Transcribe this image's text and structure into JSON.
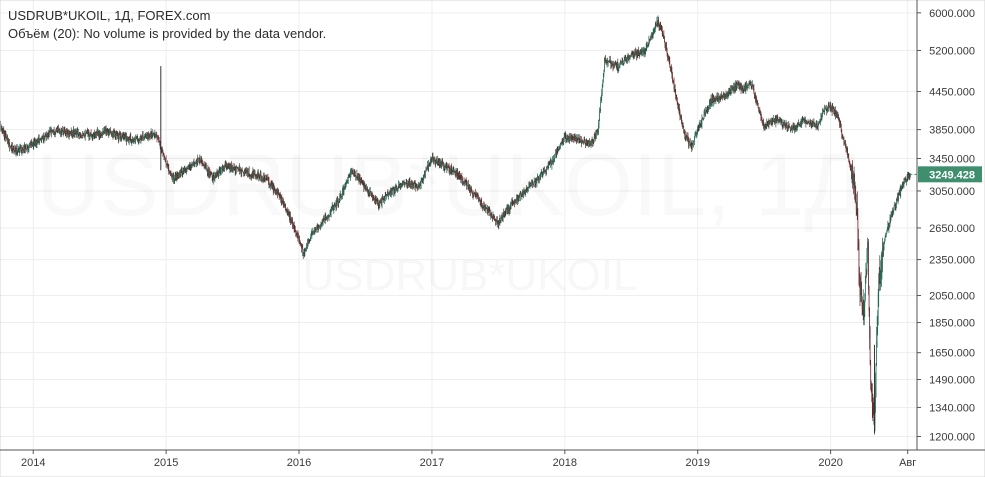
{
  "chart_data": {
    "type": "candlestick",
    "title": "USDRUB*UKOIL, 1Д, FOREX.com",
    "subtitle": "Объём (20): No volume is provided by the data vendor.",
    "watermark_main": "USDRUB*UKOIL, 1Д",
    "watermark_sub": "USDRUB*UKOIL",
    "last_value_label": "3249.428",
    "xlabel": "",
    "ylabel": "",
    "scale": "log",
    "grid": true,
    "ylim": [
      1140,
      6300
    ],
    "y_ticks": [
      6000,
      5200,
      4450,
      3850,
      3450,
      3050,
      2650,
      2350,
      2050,
      1850,
      1650,
      1490,
      1340,
      1200
    ],
    "y_tick_labels": [
      "6000.000",
      "5200.000",
      "4450.000",
      "3850.000",
      "3450.000",
      "3050.000",
      "2650.000",
      "2350.000",
      "2050.000",
      "1850.000",
      "1650.000",
      "1490.000",
      "1340.000",
      "1200.000"
    ],
    "xlim": [
      2013.75,
      2020.65
    ],
    "x_ticks": [
      2014,
      2015,
      2016,
      2017,
      2018,
      2019,
      2020,
      2020.58
    ],
    "x_tick_labels": [
      "2014",
      "2015",
      "2016",
      "2017",
      "2018",
      "2019",
      "2020",
      "Авг"
    ],
    "series": [
      {
        "x": [
          2013.75,
          2013.85,
          2013.95,
          2014.05,
          2014.15,
          2014.25,
          2014.35,
          2014.45,
          2014.55,
          2014.65,
          2014.75,
          2014.85,
          2014.92,
          2014.96,
          2015.0,
          2015.05,
          2015.15,
          2015.25,
          2015.35,
          2015.45,
          2015.55,
          2015.65,
          2015.75,
          2015.85,
          2015.95,
          2016.0,
          2016.03,
          2016.1,
          2016.2,
          2016.3,
          2016.4,
          2016.5,
          2016.6,
          2016.7,
          2016.8,
          2016.9,
          2017.0,
          2017.1,
          2017.2,
          2017.3,
          2017.4,
          2017.5,
          2017.6,
          2017.7,
          2017.8,
          2017.9,
          2018.0,
          2018.1,
          2018.2,
          2018.25,
          2018.3,
          2018.4,
          2018.5,
          2018.6,
          2018.65,
          2018.7,
          2018.75,
          2018.8,
          2018.85,
          2018.9,
          2018.95,
          2019.0,
          2019.1,
          2019.2,
          2019.3,
          2019.35,
          2019.4,
          2019.5,
          2019.6,
          2019.7,
          2019.8,
          2019.9,
          2019.95,
          2020.0,
          2020.05,
          2020.1,
          2020.15,
          2020.18,
          2020.2,
          2020.22,
          2020.25,
          2020.28,
          2020.3,
          2020.33,
          2020.36,
          2020.4,
          2020.45,
          2020.5,
          2020.55,
          2020.6
        ],
        "y": [
          3900,
          3550,
          3600,
          3700,
          3850,
          3800,
          3800,
          3780,
          3820,
          3750,
          3700,
          3750,
          3800,
          3600,
          3400,
          3200,
          3300,
          3450,
          3200,
          3350,
          3300,
          3250,
          3200,
          3000,
          2700,
          2550,
          2400,
          2600,
          2750,
          2950,
          3300,
          3100,
          2900,
          3050,
          3150,
          3100,
          3450,
          3350,
          3250,
          3050,
          2850,
          2700,
          2900,
          3050,
          3200,
          3400,
          3750,
          3700,
          3650,
          3850,
          5000,
          4900,
          5100,
          5200,
          5500,
          5800,
          5400,
          4800,
          4200,
          3800,
          3600,
          3850,
          4300,
          4400,
          4550,
          4500,
          4600,
          3900,
          4000,
          3850,
          4000,
          3900,
          4150,
          4200,
          4050,
          3700,
          3350,
          3100,
          2800,
          2100,
          1950,
          2500,
          1500,
          1250,
          2150,
          2500,
          2750,
          2950,
          3150,
          3249
        ]
      }
    ]
  }
}
